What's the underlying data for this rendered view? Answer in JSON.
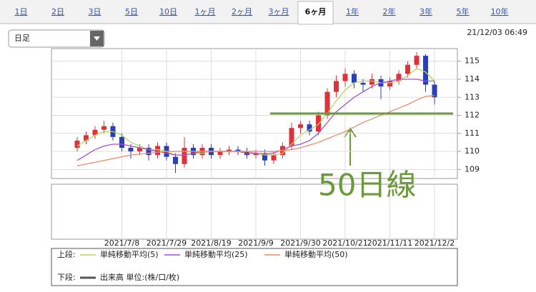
{
  "tabs": [
    "1日",
    "2日",
    "3日",
    "5日",
    "10日",
    "1ヶ月",
    "2ヶ月",
    "3ヶ月",
    "6ヶ月",
    "1年",
    "2年",
    "3年",
    "5年",
    "10年"
  ],
  "active_tab": 8,
  "dropdown": "日足",
  "timestamp": "21/12/03 06:49",
  "chart_data": {
    "type": "candlestick",
    "categories": [
      null,
      null,
      null,
      null,
      null,
      "2021/7/8",
      null,
      null,
      null,
      null,
      "2021/7/29",
      null,
      null,
      null,
      null,
      "2021/8/19",
      null,
      null,
      null,
      null,
      "2021/9/9",
      null,
      null,
      null,
      null,
      "2021/9/30",
      null,
      null,
      null,
      null,
      "2021/10/21",
      null,
      null,
      null,
      null,
      "2021/11/11",
      null,
      null,
      null,
      null,
      "2021/12/2"
    ],
    "open": [
      110.2,
      110.6,
      110.9,
      111.2,
      111.4,
      110.8,
      110.2,
      110.0,
      110.2,
      109.8,
      110.3,
      109.7,
      109.3,
      110.2,
      109.8,
      110.2,
      109.8,
      110.0,
      110.1,
      110.0,
      109.8,
      109.9,
      109.5,
      109.8,
      110.3,
      111.3,
      111.5,
      111.1,
      112.0,
      113.3,
      113.9,
      114.3,
      113.8,
      113.7,
      114.0,
      113.6,
      113.9,
      114.3,
      114.8,
      115.3,
      113.7
    ],
    "high": [
      110.8,
      111.1,
      111.4,
      111.7,
      111.6,
      111.0,
      110.4,
      110.4,
      110.4,
      110.5,
      110.5,
      109.9,
      110.8,
      110.4,
      110.4,
      110.4,
      110.2,
      110.3,
      110.3,
      110.2,
      110.1,
      110.1,
      110.0,
      110.5,
      111.6,
      111.7,
      111.7,
      112.2,
      113.5,
      114.2,
      114.6,
      114.5,
      114.0,
      114.3,
      114.2,
      114.1,
      114.5,
      115.0,
      115.5,
      115.4,
      113.9
    ],
    "low": [
      110.0,
      110.4,
      110.7,
      111.0,
      110.6,
      110.0,
      109.6,
      109.8,
      109.5,
      109.6,
      109.5,
      108.8,
      109.1,
      109.6,
      109.6,
      109.6,
      109.6,
      109.8,
      109.8,
      109.6,
      109.6,
      109.2,
      109.3,
      109.6,
      110.1,
      111.0,
      110.9,
      110.9,
      111.8,
      113.0,
      113.6,
      113.5,
      113.3,
      113.5,
      112.9,
      113.4,
      113.7,
      114.1,
      114.6,
      113.3,
      112.6
    ],
    "close": [
      110.6,
      110.9,
      111.2,
      111.4,
      110.8,
      110.2,
      110.0,
      110.2,
      109.8,
      110.3,
      109.7,
      109.3,
      110.2,
      109.8,
      110.2,
      109.8,
      110.0,
      110.1,
      110.0,
      109.8,
      109.9,
      109.5,
      109.8,
      110.3,
      111.3,
      111.5,
      111.1,
      112.0,
      113.3,
      113.9,
      114.3,
      113.8,
      113.7,
      114.0,
      113.6,
      113.9,
      114.3,
      114.8,
      115.3,
      113.7,
      113.0
    ],
    "up_color": "#e0303a",
    "down_color": "#2a3fb8",
    "series": [
      {
        "name": "単純移動平均(5)",
        "color": "#b5d65a",
        "values": [
          110.3,
          110.6,
          110.9,
          111.1,
          111.1,
          110.9,
          110.5,
          110.3,
          110.1,
          110.1,
          110.0,
          109.8,
          109.8,
          109.9,
          109.9,
          110.0,
          110.0,
          110.0,
          110.0,
          110.0,
          109.9,
          109.8,
          109.8,
          109.9,
          110.4,
          110.9,
          111.2,
          111.5,
          112.1,
          112.8,
          113.4,
          113.8,
          113.9,
          113.9,
          113.8,
          113.8,
          113.9,
          114.2,
          114.6,
          114.4,
          113.9
        ]
      },
      {
        "name": "単純移動平均(25)",
        "color": "#a64fd6",
        "values": [
          109.5,
          109.8,
          110.1,
          110.3,
          110.4,
          110.4,
          110.3,
          110.2,
          110.1,
          110.0,
          109.9,
          109.8,
          109.8,
          109.9,
          110.0,
          110.0,
          110.0,
          110.0,
          110.0,
          109.9,
          109.9,
          109.85,
          109.9,
          110.1,
          110.3,
          110.4,
          110.6,
          111.0,
          111.6,
          112.2,
          112.6,
          113.0,
          113.3,
          113.6,
          113.8,
          113.9,
          114.0,
          114.0,
          114.0,
          113.9,
          113.9
        ]
      },
      {
        "name": "単純移動平均(50)",
        "color": "#ec8c6a",
        "values": [
          109.2,
          109.3,
          109.4,
          109.5,
          109.6,
          109.7,
          109.8,
          109.85,
          109.9,
          109.95,
          110.0,
          110.0,
          110.0,
          110.0,
          110.0,
          110.0,
          110.0,
          110.0,
          110.0,
          110.0,
          110.0,
          110.0,
          110.0,
          110.05,
          110.1,
          110.2,
          110.35,
          110.5,
          110.7,
          110.9,
          111.1,
          111.35,
          111.6,
          111.8,
          112.0,
          112.2,
          112.4,
          112.6,
          112.85,
          113.05,
          113.1
        ]
      }
    ],
    "ylim": [
      108.5,
      115.7
    ],
    "yticks": [
      109,
      110,
      111,
      112,
      113,
      114,
      115
    ],
    "grid": true,
    "annotation": {
      "text": "50日線",
      "level": 112.1,
      "color": "#6a9a3a"
    },
    "legend_upper": "上段:",
    "legend_lower": "下段:",
    "volume_legend": {
      "name": "出来高 単位:(株/口/枚)",
      "color": "#555555"
    }
  }
}
